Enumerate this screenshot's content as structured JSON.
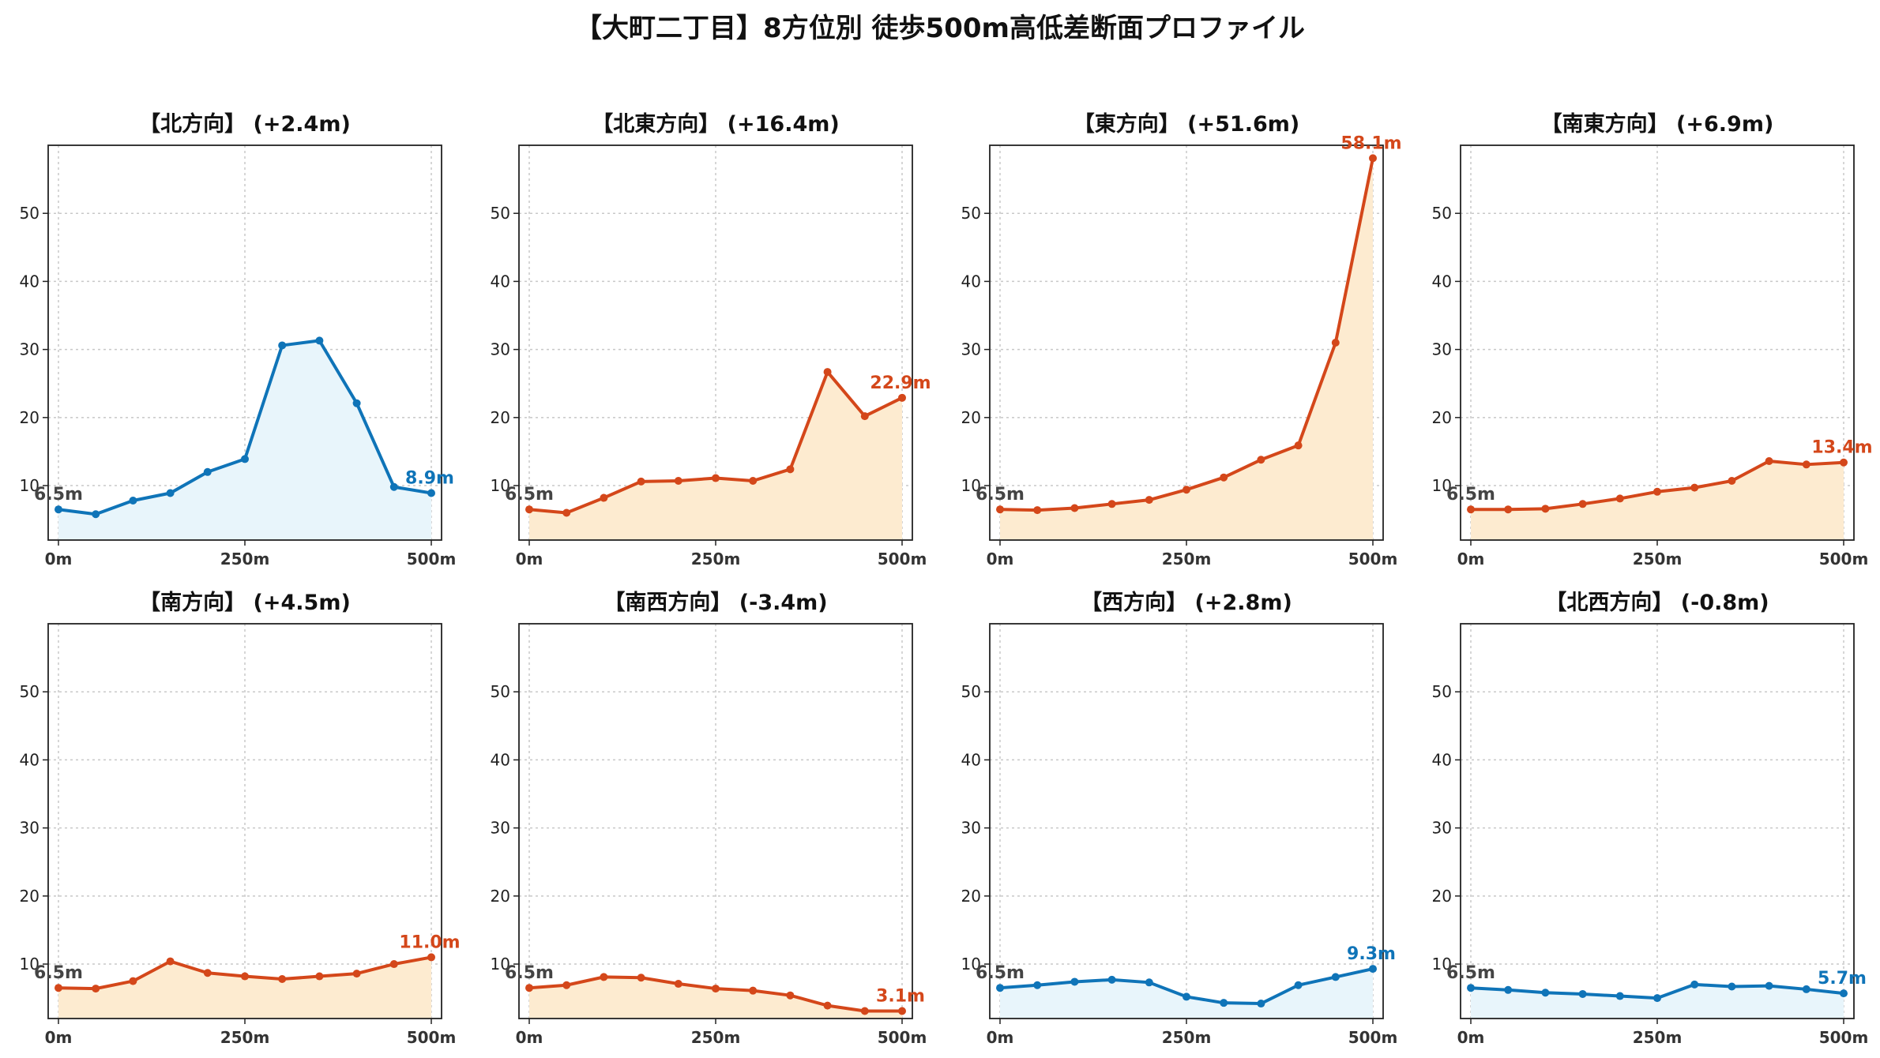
{
  "title": "【大町二丁目】8方位別 徒歩500m高低差断面プロファイル",
  "colors": {
    "up": "#d4471a",
    "up_fill": "#fdebd0",
    "down": "#0f74b8",
    "down_fill": "#e8f5fb",
    "grid": "#c8c8c8"
  },
  "chart_data": [
    {
      "type": "area",
      "title": "【北方向】 (+2.4m)",
      "trend": "down",
      "x": [
        0,
        50,
        100,
        150,
        200,
        250,
        300,
        350,
        400,
        450,
        500
      ],
      "values": [
        6.5,
        5.8,
        7.8,
        8.9,
        12.0,
        13.9,
        30.6,
        31.3,
        22.1,
        9.8,
        8.9
      ],
      "start_label": "6.5m",
      "end_label": "8.9m",
      "xticks": [
        "0m",
        "250m",
        "500m"
      ],
      "yticks": [
        "10",
        "20",
        "30",
        "40",
        "50"
      ],
      "ylim": [
        2,
        60
      ],
      "grid": true
    },
    {
      "type": "area",
      "title": "【北東方向】 (+16.4m)",
      "trend": "up",
      "x": [
        0,
        50,
        100,
        150,
        200,
        250,
        300,
        350,
        400,
        450,
        500
      ],
      "values": [
        6.5,
        6.0,
        8.2,
        10.6,
        10.7,
        11.1,
        10.7,
        12.4,
        26.7,
        20.2,
        22.9
      ],
      "start_label": "6.5m",
      "end_label": "22.9m",
      "xticks": [
        "0m",
        "250m",
        "500m"
      ],
      "yticks": [
        "10",
        "20",
        "30",
        "40",
        "50"
      ],
      "ylim": [
        2,
        60
      ],
      "grid": true
    },
    {
      "type": "area",
      "title": "【東方向】 (+51.6m)",
      "trend": "up",
      "x": [
        0,
        50,
        100,
        150,
        200,
        250,
        300,
        350,
        400,
        450,
        500
      ],
      "values": [
        6.5,
        6.4,
        6.7,
        7.3,
        7.9,
        9.4,
        11.2,
        13.8,
        15.9,
        31.0,
        58.1
      ],
      "start_label": "6.5m",
      "end_label": "58.1m",
      "xticks": [
        "0m",
        "250m",
        "500m"
      ],
      "yticks": [
        "10",
        "20",
        "30",
        "40",
        "50"
      ],
      "ylim": [
        2,
        60
      ],
      "grid": true
    },
    {
      "type": "area",
      "title": "【南東方向】 (+6.9m)",
      "trend": "up",
      "x": [
        0,
        50,
        100,
        150,
        200,
        250,
        300,
        350,
        400,
        450,
        500
      ],
      "values": [
        6.5,
        6.5,
        6.6,
        7.3,
        8.1,
        9.1,
        9.7,
        10.7,
        13.6,
        13.1,
        13.4
      ],
      "start_label": "6.5m",
      "end_label": "13.4m",
      "xticks": [
        "0m",
        "250m",
        "500m"
      ],
      "yticks": [
        "10",
        "20",
        "30",
        "40",
        "50"
      ],
      "ylim": [
        2,
        60
      ],
      "grid": true
    },
    {
      "type": "area",
      "title": "【南方向】 (+4.5m)",
      "trend": "up",
      "x": [
        0,
        50,
        100,
        150,
        200,
        250,
        300,
        350,
        400,
        450,
        500
      ],
      "values": [
        6.5,
        6.4,
        7.5,
        10.4,
        8.7,
        8.2,
        7.8,
        8.2,
        8.6,
        10.0,
        11.0
      ],
      "start_label": "6.5m",
      "end_label": "11.0m",
      "xticks": [
        "0m",
        "250m",
        "500m"
      ],
      "yticks": [
        "10",
        "20",
        "30",
        "40",
        "50"
      ],
      "ylim": [
        2,
        60
      ],
      "grid": true
    },
    {
      "type": "area",
      "title": "【南西方向】 (-3.4m)",
      "trend": "up",
      "x": [
        0,
        50,
        100,
        150,
        200,
        250,
        300,
        350,
        400,
        450,
        500
      ],
      "values": [
        6.5,
        6.9,
        8.1,
        8.0,
        7.1,
        6.4,
        6.1,
        5.4,
        3.9,
        3.1,
        3.1
      ],
      "start_label": "6.5m",
      "end_label": "3.1m",
      "xticks": [
        "0m",
        "250m",
        "500m"
      ],
      "yticks": [
        "10",
        "20",
        "30",
        "40",
        "50"
      ],
      "ylim": [
        2,
        60
      ],
      "grid": true
    },
    {
      "type": "area",
      "title": "【西方向】 (+2.8m)",
      "trend": "down",
      "x": [
        0,
        50,
        100,
        150,
        200,
        250,
        300,
        350,
        400,
        450,
        500
      ],
      "values": [
        6.5,
        6.9,
        7.4,
        7.7,
        7.3,
        5.2,
        4.3,
        4.2,
        6.9,
        8.1,
        9.3
      ],
      "start_label": "6.5m",
      "end_label": "9.3m",
      "xticks": [
        "0m",
        "250m",
        "500m"
      ],
      "yticks": [
        "10",
        "20",
        "30",
        "40",
        "50"
      ],
      "ylim": [
        2,
        60
      ],
      "grid": true
    },
    {
      "type": "area",
      "title": "【北西方向】 (-0.8m)",
      "trend": "down",
      "x": [
        0,
        50,
        100,
        150,
        200,
        250,
        300,
        350,
        400,
        450,
        500
      ],
      "values": [
        6.5,
        6.2,
        5.8,
        5.6,
        5.3,
        5.0,
        7.0,
        6.7,
        6.8,
        6.3,
        5.7
      ],
      "start_label": "6.5m",
      "end_label": "5.7m",
      "xticks": [
        "0m",
        "250m",
        "500m"
      ],
      "yticks": [
        "10",
        "20",
        "30",
        "40",
        "50"
      ],
      "ylim": [
        2,
        60
      ],
      "grid": true
    }
  ]
}
